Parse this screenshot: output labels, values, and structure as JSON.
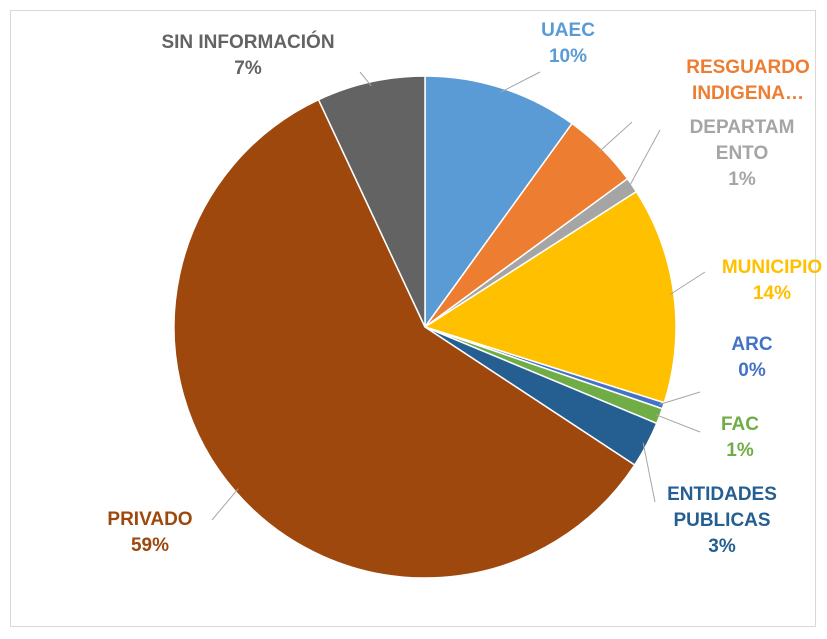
{
  "chart_data": {
    "type": "pie",
    "categories": [
      "UAEC",
      "RESGUARDO INDIGENA…",
      "DEPARTAMENTO",
      "MUNICIPIO",
      "ARC",
      "FAC",
      "ENTIDADES PUBLICAS",
      "PRIVADO",
      "SIN INFORMACIÓN"
    ],
    "values": [
      10,
      5,
      1,
      14,
      0.4,
      1,
      3,
      59,
      7
    ],
    "value_labels": [
      "10%",
      null,
      "1%",
      "14%",
      "0%",
      "1%",
      "3%",
      "59%",
      "7%"
    ],
    "colors": [
      "#5b9bd5",
      "#ed7d31",
      "#a5a5a5",
      "#ffc000",
      "#4472c4",
      "#70ad47",
      "#255e91",
      "#9e480e",
      "#636363"
    ]
  }
}
